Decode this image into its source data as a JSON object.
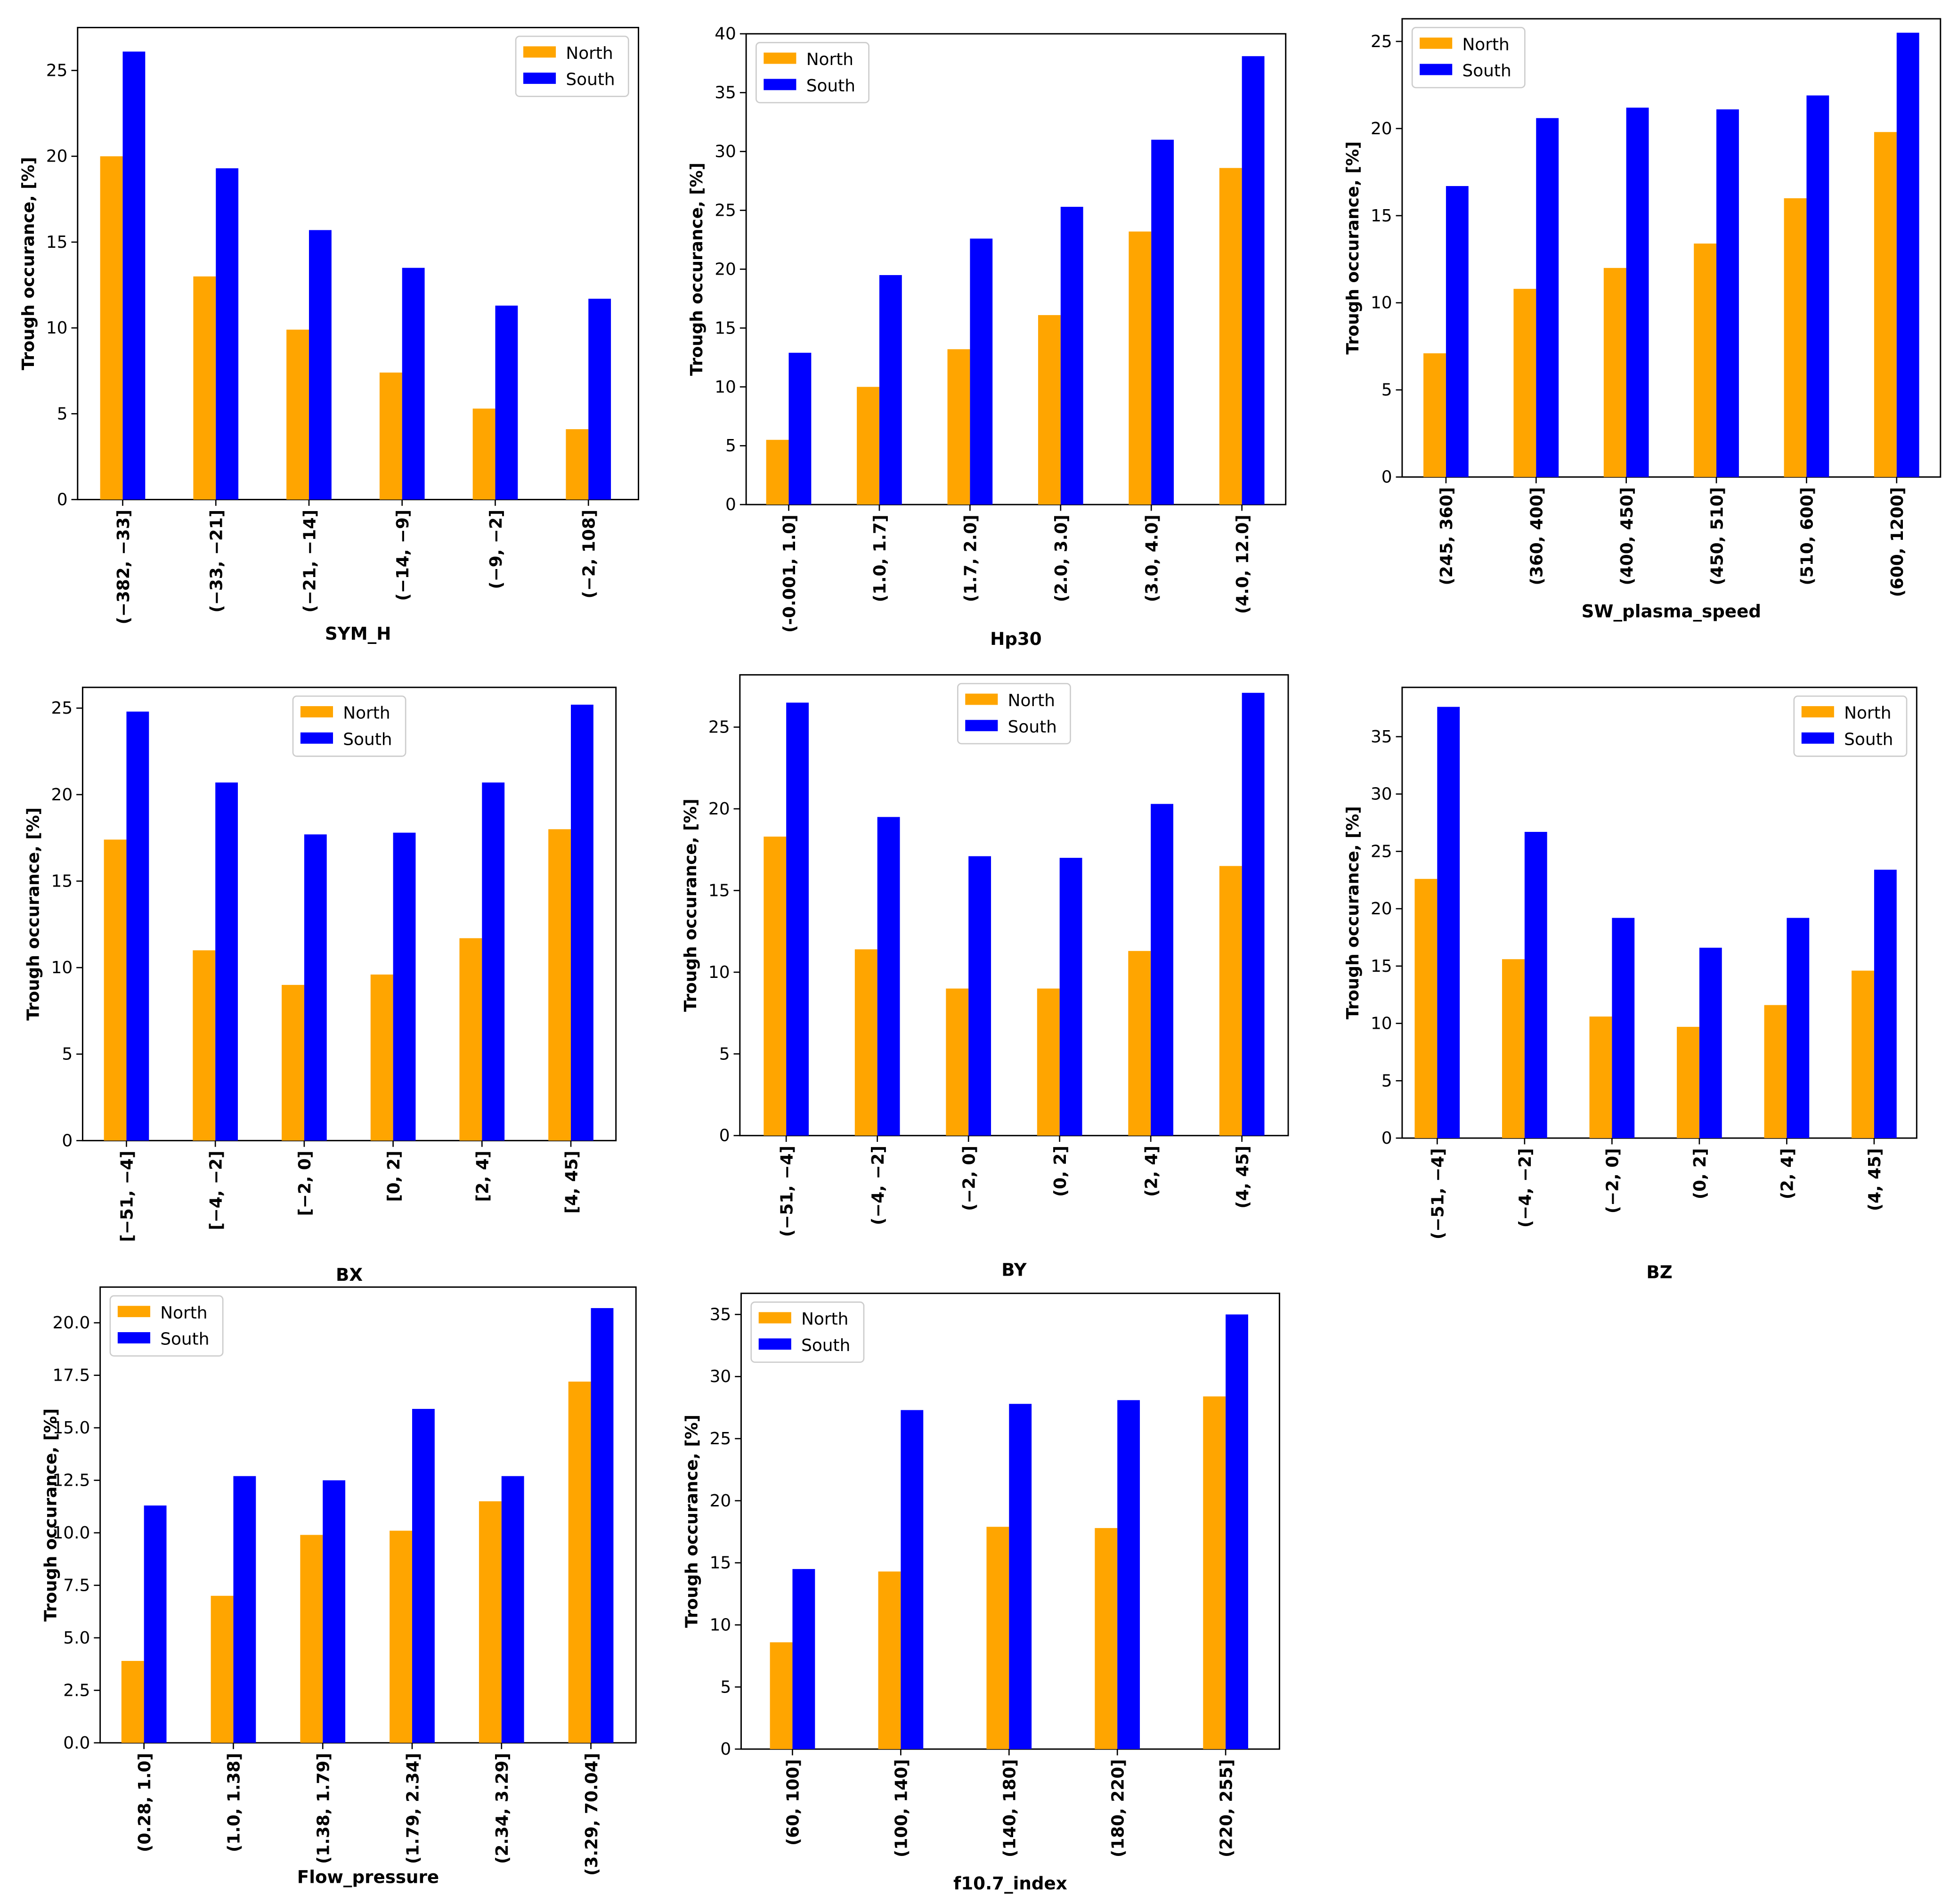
{
  "legend": {
    "north": "North",
    "south": "South"
  },
  "colors": {
    "north": "#FFA500",
    "south": "#0000FF"
  },
  "chart_data": [
    {
      "type": "bar",
      "xlabel": "SYM_H",
      "ylabel": "Trough occurance, [%]",
      "ylim": [
        0,
        27.5
      ],
      "yticks": [
        "0",
        "5",
        "10",
        "15",
        "20",
        "25"
      ],
      "legend_position": "top-right",
      "categories": [
        "(−382, −33]",
        "(−33, −21]",
        "(−21, −14]",
        "(−14, −9]",
        "(−9, −2]",
        "(−2, 108]"
      ],
      "series": [
        {
          "name": "North",
          "values": [
            20.0,
            13.0,
            9.9,
            7.4,
            5.3,
            4.1
          ]
        },
        {
          "name": "South",
          "values": [
            26.1,
            19.3,
            15.7,
            13.5,
            11.3,
            11.7
          ]
        }
      ]
    },
    {
      "type": "bar",
      "xlabel": "Hp30",
      "ylabel": "Trough occurance, [%]",
      "ylim": [
        0,
        40
      ],
      "yticks": [
        "0",
        "5",
        "10",
        "15",
        "20",
        "25",
        "30",
        "35",
        "40"
      ],
      "legend_position": "top-left",
      "categories": [
        "(-0.001, 1.0]",
        "(1.0, 1.7]",
        "(1.7, 2.0]",
        "(2.0, 3.0]",
        "(3.0, 4.0]",
        "(4.0, 12.0]"
      ],
      "series": [
        {
          "name": "North",
          "values": [
            5.5,
            10.0,
            13.2,
            16.1,
            23.2,
            28.6
          ]
        },
        {
          "name": "South",
          "values": [
            12.9,
            19.5,
            22.6,
            25.3,
            31.0,
            38.1
          ]
        }
      ]
    },
    {
      "type": "bar",
      "xlabel": "SW_plasma_speed",
      "ylabel": "Trough occurance, [%]",
      "ylim": [
        0,
        26.3
      ],
      "yticks": [
        "0",
        "5",
        "10",
        "15",
        "20",
        "25"
      ],
      "legend_position": "top-left",
      "categories": [
        "(245, 360]",
        "(360, 400]",
        "(400, 450]",
        "(450, 510]",
        "(510, 600]",
        "(600, 1200]"
      ],
      "series": [
        {
          "name": "North",
          "values": [
            7.1,
            10.8,
            12.0,
            13.4,
            16.0,
            19.8
          ]
        },
        {
          "name": "South",
          "values": [
            16.7,
            20.6,
            21.2,
            21.1,
            21.9,
            25.5
          ]
        }
      ]
    },
    {
      "type": "bar",
      "xlabel": "BX",
      "ylabel": "Trough occurance, [%]",
      "ylim": [
        0,
        26.2
      ],
      "yticks": [
        "0",
        "5",
        "10",
        "15",
        "20",
        "25"
      ],
      "legend_position": "top-center",
      "categories": [
        "[−51, −4]",
        "[−4, −2]",
        "[−2, 0]",
        "[0, 2]",
        "[2, 4]",
        "[4, 45]"
      ],
      "series": [
        {
          "name": "North",
          "values": [
            17.4,
            11.0,
            9.0,
            9.6,
            11.7,
            18.0
          ]
        },
        {
          "name": "South",
          "values": [
            24.8,
            20.7,
            17.7,
            17.8,
            20.7,
            25.2
          ]
        }
      ]
    },
    {
      "type": "bar",
      "xlabel": "BY",
      "ylabel": "Trough occurance, [%]",
      "ylim": [
        0,
        28.2
      ],
      "yticks": [
        "0",
        "5",
        "10",
        "15",
        "20",
        "25"
      ],
      "legend_position": "top-center",
      "categories": [
        "(−51, −4]",
        "(−4, −2]",
        "(−2, 0]",
        "(0, 2]",
        "(2, 4]",
        "(4, 45]"
      ],
      "series": [
        {
          "name": "North",
          "values": [
            18.3,
            11.4,
            9.0,
            9.0,
            11.3,
            16.5
          ]
        },
        {
          "name": "South",
          "values": [
            26.5,
            19.5,
            17.1,
            17.0,
            20.3,
            27.1
          ]
        }
      ]
    },
    {
      "type": "bar",
      "xlabel": "BZ",
      "ylabel": "Trough occurance, [%]",
      "ylim": [
        0,
        39.3
      ],
      "yticks": [
        "0",
        "5",
        "10",
        "15",
        "20",
        "25",
        "30",
        "35"
      ],
      "legend_position": "top-right",
      "categories": [
        "(−51, −4]",
        "(−4, −2]",
        "(−2, 0]",
        "(0, 2]",
        "(2, 4]",
        "(4, 45]"
      ],
      "series": [
        {
          "name": "North",
          "values": [
            22.6,
            15.6,
            10.6,
            9.7,
            11.6,
            14.6
          ]
        },
        {
          "name": "South",
          "values": [
            37.6,
            26.7,
            19.2,
            16.6,
            19.2,
            23.4
          ]
        }
      ]
    },
    {
      "type": "bar",
      "xlabel": "Flow_pressure",
      "ylabel": "Trough occurance, [%]",
      "ylim": [
        0,
        21.7
      ],
      "yticks": [
        "0.0",
        "2.5",
        "5.0",
        "7.5",
        "10.0",
        "12.5",
        "15.0",
        "17.5",
        "20.0"
      ],
      "legend_position": "top-left",
      "categories": [
        "(0.28, 1.0]",
        "(1.0, 1.38]",
        "(1.38, 1.79]",
        "(1.79, 2.34]",
        "(2.34, 3.29]",
        "(3.29, 70.04]"
      ],
      "series": [
        {
          "name": "North",
          "values": [
            3.9,
            7.0,
            9.9,
            10.1,
            11.5,
            17.2
          ]
        },
        {
          "name": "South",
          "values": [
            11.3,
            12.7,
            12.5,
            15.9,
            12.7,
            20.7
          ]
        }
      ]
    },
    {
      "type": "bar",
      "xlabel": "f10.7_index",
      "ylabel": "Trough occurance, [%]",
      "ylim": [
        0,
        36.7
      ],
      "yticks": [
        "0",
        "5",
        "10",
        "15",
        "20",
        "25",
        "30",
        "35"
      ],
      "legend_position": "top-left",
      "categories": [
        "(60, 100]",
        "(100, 140]",
        "(140, 180]",
        "(180, 220]",
        "(220, 255]"
      ],
      "series": [
        {
          "name": "North",
          "values": [
            8.6,
            14.3,
            17.9,
            17.8,
            28.4
          ]
        },
        {
          "name": "South",
          "values": [
            14.5,
            27.3,
            27.8,
            28.1,
            35.0
          ]
        }
      ]
    }
  ]
}
